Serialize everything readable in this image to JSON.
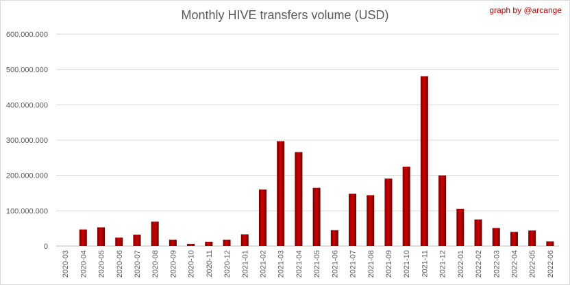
{
  "chart_data": {
    "type": "bar",
    "title": "Monthly HIVE transfers volume (USD)",
    "credit": "graph by @arcange",
    "xlabel": "",
    "ylabel": "",
    "ylim": [
      0,
      600000000
    ],
    "y_ticks": [
      {
        "value": 0,
        "label": "0"
      },
      {
        "value": 100000000,
        "label": "100.000.000"
      },
      {
        "value": 200000000,
        "label": "200.000.000"
      },
      {
        "value": 300000000,
        "label": "300.000.000"
      },
      {
        "value": 400000000,
        "label": "400.000.000"
      },
      {
        "value": 500000000,
        "label": "500.000.000"
      },
      {
        "value": 600000000,
        "label": "600.000.000"
      }
    ],
    "grid": true,
    "legend": "none",
    "bar_color": "#b00000",
    "categories": [
      "2020-03",
      "2020-04",
      "2020-05",
      "2020-06",
      "2020-07",
      "2020-08",
      "2020-09",
      "2020-10",
      "2020-11",
      "2020-12",
      "2021-01",
      "2021-02",
      "2021-03",
      "2021-04",
      "2021-05",
      "2021-06",
      "2021-07",
      "2021-08",
      "2021-09",
      "2021-10",
      "2021-11",
      "2021-12",
      "2022-01",
      "2022-02",
      "2022-03",
      "2022-04",
      "2022-05",
      "2022-06"
    ],
    "values": [
      0,
      47000000,
      53000000,
      24000000,
      32000000,
      69000000,
      18000000,
      6000000,
      12000000,
      18000000,
      33000000,
      160000000,
      297000000,
      266000000,
      165000000,
      45000000,
      148000000,
      144000000,
      191000000,
      225000000,
      481000000,
      200000000,
      105000000,
      75000000,
      51000000,
      40000000,
      44000000,
      13000000
    ]
  }
}
